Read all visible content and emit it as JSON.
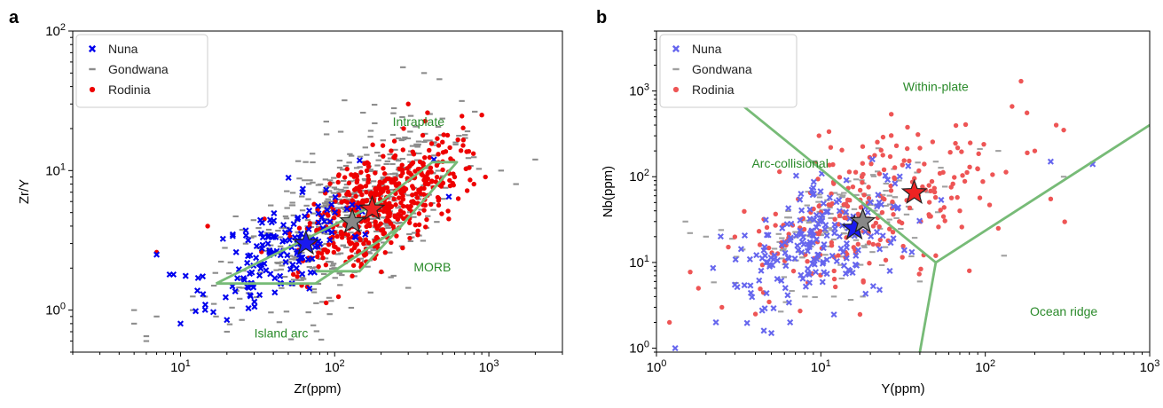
{
  "chart_data": [
    {
      "panel_letter": "a",
      "type": "scatter",
      "xlabel": "Zr(ppm)",
      "ylabel": "Zr/Y",
      "xscale": "log",
      "yscale": "log",
      "xlim": [
        2,
        3000
      ],
      "ylim": [
        0.5,
        100
      ],
      "x_ticks": [
        10,
        100,
        1000
      ],
      "y_ticks": [
        1,
        10,
        100
      ],
      "x_tick_labels": [
        {
          "base": "10",
          "exp": "1"
        },
        {
          "base": "10",
          "exp": "2"
        },
        {
          "base": "10",
          "exp": "3"
        }
      ],
      "y_tick_labels": [
        {
          "base": "10",
          "exp": "0"
        },
        {
          "base": "10",
          "exp": "1"
        },
        {
          "base": "10",
          "exp": "2"
        }
      ],
      "grid": false,
      "legend_position": "top-left",
      "series": [
        {
          "name": "Nuna",
          "marker": "x",
          "color": "#0000ee",
          "center_x": 45,
          "center_y": 2.7,
          "spread_x": 0.22,
          "spread_y": 0.18,
          "count": 150,
          "seed": 11,
          "points": [
            [
              7,
              2.5
            ],
            [
              8.5,
              1.8
            ],
            [
              9,
              1.8
            ],
            [
              10,
              0.8
            ],
            [
              13,
              1.7
            ],
            [
              14,
              1.3
            ],
            [
              20,
              0.85
            ],
            [
              62,
              3.0
            ],
            [
              75,
              3.2
            ],
            [
              120,
              5.3
            ],
            [
              440,
              12
            ],
            [
              550,
              6.5
            ]
          ]
        },
        {
          "name": "Gondwana",
          "marker": "dash",
          "color": "#8c8c8c",
          "center_x": 120,
          "center_y": 4.8,
          "spread_x": 0.34,
          "spread_y": 0.27,
          "count": 520,
          "seed": 23,
          "points": [
            [
              5,
              1.0
            ],
            [
              5,
              0.8
            ],
            [
              6,
              0.65
            ],
            [
              6,
              0.6
            ],
            [
              7,
              0.9
            ],
            [
              12,
              1.0
            ],
            [
              17,
              0.9
            ],
            [
              20,
              0.7
            ],
            [
              25,
              0.85
            ],
            [
              380,
              50
            ],
            [
              700,
              18
            ],
            [
              1200,
              10
            ],
            [
              1500,
              8
            ],
            [
              2000,
              12
            ]
          ]
        },
        {
          "name": "Rodinia",
          "marker": "circle",
          "color": "#ee0000",
          "center_x": 200,
          "center_y": 6.0,
          "spread_x": 0.25,
          "spread_y": 0.18,
          "count": 470,
          "seed": 37,
          "points": [
            [
              7,
              2.6
            ],
            [
              15,
              4.0
            ],
            [
              35,
              4.5
            ],
            [
              400,
              26
            ],
            [
              500,
              16
            ],
            [
              900,
              25
            ],
            [
              800,
              8
            ],
            [
              950,
              9
            ],
            [
              600,
              9
            ],
            [
              300,
              30
            ],
            [
              280,
              20
            ]
          ]
        }
      ],
      "mean_stars": [
        {
          "name": "Gondwana mean",
          "x": 130,
          "y": 4.3,
          "color": "#888888"
        },
        {
          "name": "Rodinia mean",
          "x": 175,
          "y": 5.3,
          "color": "#ee2222"
        },
        {
          "name": "Nuna mean",
          "x": 65,
          "y": 3.0,
          "color": "#1a1aee"
        }
      ],
      "fields": [
        {
          "name": "Intraplate field",
          "color": "#77bb77",
          "points": [
            [
              17,
              1.55
            ],
            [
              75,
              1.55
            ],
            [
              270,
              4.0
            ],
            [
              620,
              11.5
            ],
            [
              430,
              11.5
            ],
            [
              200,
              6.0
            ],
            [
              75,
              3.5
            ],
            [
              17,
              1.55
            ]
          ]
        },
        {
          "name": "MORB field",
          "color": "#77bb77",
          "points": [
            [
              75,
              1.9
            ],
            [
              145,
              1.9
            ],
            [
              270,
              4.0
            ]
          ]
        }
      ],
      "annotations": [
        {
          "text": "Intraplate",
          "x": 350,
          "y": 22,
          "color": "#2a8a2a"
        },
        {
          "text": "MORB",
          "x": 430,
          "y": 2.0,
          "color": "#2a8a2a"
        },
        {
          "text": "Island arc",
          "x": 45,
          "y": 0.67,
          "color": "#2a8a2a"
        }
      ]
    },
    {
      "panel_letter": "b",
      "type": "scatter",
      "xlabel": "Y(ppm)",
      "ylabel": "Nb(ppm)",
      "xscale": "log",
      "yscale": "log",
      "xlim": [
        1,
        1000
      ],
      "ylim": [
        0.9,
        5000
      ],
      "x_ticks": [
        1,
        10,
        100,
        1000
      ],
      "y_ticks": [
        1,
        10,
        100,
        1000
      ],
      "x_tick_labels": [
        {
          "base": "10",
          "exp": "0"
        },
        {
          "base": "10",
          "exp": "1"
        },
        {
          "base": "10",
          "exp": "2"
        },
        {
          "base": "10",
          "exp": "3"
        }
      ],
      "y_tick_labels": [
        {
          "base": "10",
          "exp": "0"
        },
        {
          "base": "10",
          "exp": "1"
        },
        {
          "base": "10",
          "exp": "2"
        },
        {
          "base": "10",
          "exp": "3"
        }
      ],
      "grid": false,
      "legend_position": "top-left",
      "series": [
        {
          "name": "Nuna",
          "marker": "x",
          "color": "#6666ee",
          "center_x": 10,
          "center_y": 18,
          "spread_x": 0.28,
          "spread_y": 0.32,
          "count": 190,
          "seed": 41,
          "points": [
            [
              1.3,
              1.0
            ],
            [
              2.3,
              2.0
            ],
            [
              3.0,
              5.5
            ],
            [
              4.5,
              1.6
            ],
            [
              5.0,
              1.5
            ],
            [
              6.5,
              2.0
            ],
            [
              450,
              140
            ],
            [
              250,
              150
            ]
          ]
        },
        {
          "name": "Gondwana",
          "marker": "dash",
          "color": "#a0a0a0",
          "center_x": 14,
          "center_y": 30,
          "spread_x": 0.3,
          "spread_y": 0.33,
          "count": 160,
          "seed": 53,
          "points": [
            [
              1.5,
              30
            ],
            [
              1.6,
              22
            ],
            [
              2.0,
              20
            ],
            [
              8,
              4
            ],
            [
              12,
              4
            ],
            [
              18,
              4
            ],
            [
              40,
              6
            ],
            [
              50,
              150
            ],
            [
              120,
              200
            ],
            [
              130,
              12
            ],
            [
              300,
              100
            ]
          ]
        },
        {
          "name": "Rodinia",
          "marker": "circle",
          "color": "#ee5555",
          "center_x": 18,
          "center_y": 35,
          "spread_x": 0.36,
          "spread_y": 0.42,
          "count": 230,
          "seed": 67,
          "points": [
            [
              1.2,
              2.0
            ],
            [
              1.8,
              5.0
            ],
            [
              2.5,
              3.0
            ],
            [
              4.0,
              2.5
            ],
            [
              165,
              1300
            ],
            [
              270,
              400
            ],
            [
              300,
              350
            ],
            [
              200,
              200
            ],
            [
              180,
              190
            ],
            [
              120,
              25
            ],
            [
              70,
              40
            ],
            [
              50,
              12
            ],
            [
              30,
              30
            ],
            [
              80,
              8
            ],
            [
              250,
              55
            ]
          ]
        }
      ],
      "mean_stars": [
        {
          "name": "Rodinia mean",
          "x": 37,
          "y": 65,
          "color": "#ee2222"
        },
        {
          "name": "Nuna mean",
          "x": 16,
          "y": 25,
          "color": "#1a1aee"
        },
        {
          "name": "Gondwana mean",
          "x": 18,
          "y": 30,
          "color": "#888888"
        }
      ],
      "fields": [
        {
          "name": "VAG-WPG boundary",
          "color": "#77bb77",
          "points": [
            [
              3,
              800
            ],
            [
              50,
              10
            ]
          ]
        },
        {
          "name": "ORG boundary lower",
          "color": "#77bb77",
          "points": [
            [
              50,
              10
            ],
            [
              40,
              0.9
            ]
          ]
        },
        {
          "name": "ORG-WPG boundary",
          "color": "#77bb77",
          "points": [
            [
              50,
              10
            ],
            [
              1000,
              400
            ]
          ]
        }
      ],
      "annotations": [
        {
          "text": "Within-plate",
          "x": 50,
          "y": 1100,
          "color": "#2a8a2a"
        },
        {
          "text": "Arc-collisional",
          "x": 6.5,
          "y": 140,
          "color": "#2a8a2a"
        },
        {
          "text": "Ocean ridge",
          "x": 300,
          "y": 2.6,
          "color": "#2a8a2a"
        }
      ]
    }
  ]
}
